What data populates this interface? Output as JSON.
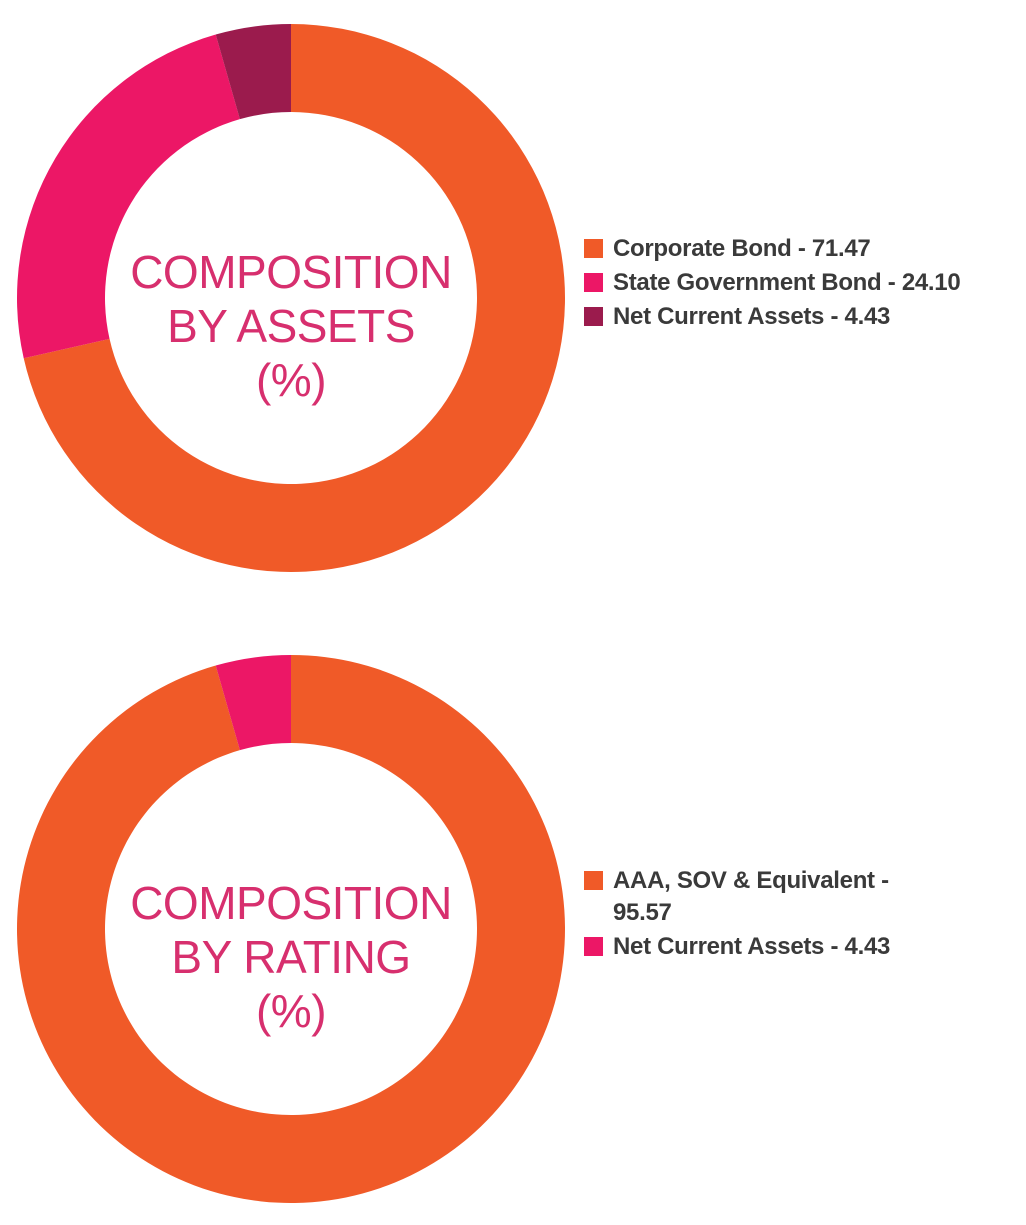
{
  "chart_data": [
    {
      "type": "pie",
      "variant": "donut",
      "center_label": [
        "COMPOSITION",
        "BY ASSETS",
        "(%)"
      ],
      "legend_placement": "right",
      "slices": [
        {
          "label": "Corporate Bond - 71.47",
          "value": 71.47,
          "color": "#f05a28"
        },
        {
          "label": "State Government Bond - 24.10",
          "value": 24.1,
          "color": "#ec1766"
        },
        {
          "label": "Net Current Assets - 4.43",
          "value": 4.43,
          "color": "#9b1b4d"
        }
      ]
    },
    {
      "type": "pie",
      "variant": "donut",
      "center_label": [
        "COMPOSITION",
        "BY RATING",
        "(%)"
      ],
      "legend_placement": "right",
      "slices": [
        {
          "label": "AAA, SOV & Equivalent - 95.57",
          "value": 95.57,
          "color": "#f05a28"
        },
        {
          "label": "Net Current Assets - 4.43",
          "value": 4.43,
          "color": "#ec1766"
        }
      ]
    }
  ]
}
